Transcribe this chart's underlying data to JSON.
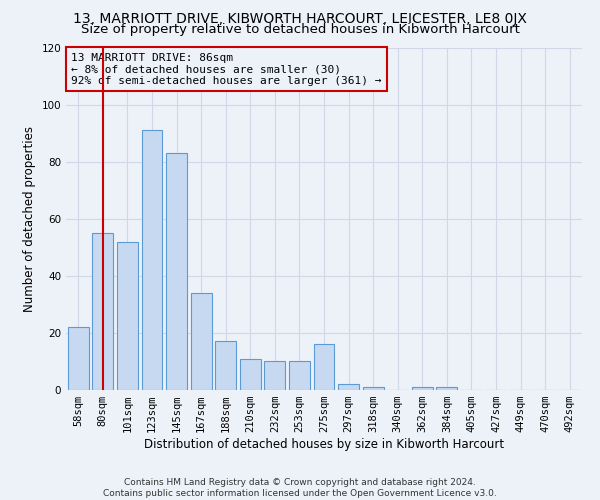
{
  "title": "13, MARRIOTT DRIVE, KIBWORTH HARCOURT, LEICESTER, LE8 0JX",
  "subtitle": "Size of property relative to detached houses in Kibworth Harcourt",
  "xlabel": "Distribution of detached houses by size in Kibworth Harcourt",
  "ylabel": "Number of detached properties",
  "bar_labels": [
    "58sqm",
    "80sqm",
    "101sqm",
    "123sqm",
    "145sqm",
    "167sqm",
    "188sqm",
    "210sqm",
    "232sqm",
    "253sqm",
    "275sqm",
    "297sqm",
    "318sqm",
    "340sqm",
    "362sqm",
    "384sqm",
    "405sqm",
    "427sqm",
    "449sqm",
    "470sqm",
    "492sqm"
  ],
  "bar_values": [
    22,
    55,
    52,
    91,
    83,
    34,
    17,
    11,
    10,
    10,
    16,
    2,
    1,
    0,
    1,
    1,
    0,
    0,
    0,
    0,
    0
  ],
  "bar_color": "#c6d9f0",
  "bar_edge_color": "#5b9bd5",
  "grid_color": "#d0d8e8",
  "background_color": "#edf2f9",
  "red_line_x": 1,
  "annotation_text": "13 MARRIOTT DRIVE: 86sqm\n← 8% of detached houses are smaller (30)\n92% of semi-detached houses are larger (361) →",
  "annotation_box_edge": "#cc0000",
  "ylim": [
    0,
    120
  ],
  "yticks": [
    0,
    20,
    40,
    60,
    80,
    100,
    120
  ],
  "footer": "Contains HM Land Registry data © Crown copyright and database right 2024.\nContains public sector information licensed under the Open Government Licence v3.0.",
  "title_fontsize": 10,
  "subtitle_fontsize": 9.5,
  "xlabel_fontsize": 8.5,
  "ylabel_fontsize": 8.5,
  "tick_fontsize": 7.5,
  "annotation_fontsize": 8,
  "footer_fontsize": 6.5
}
